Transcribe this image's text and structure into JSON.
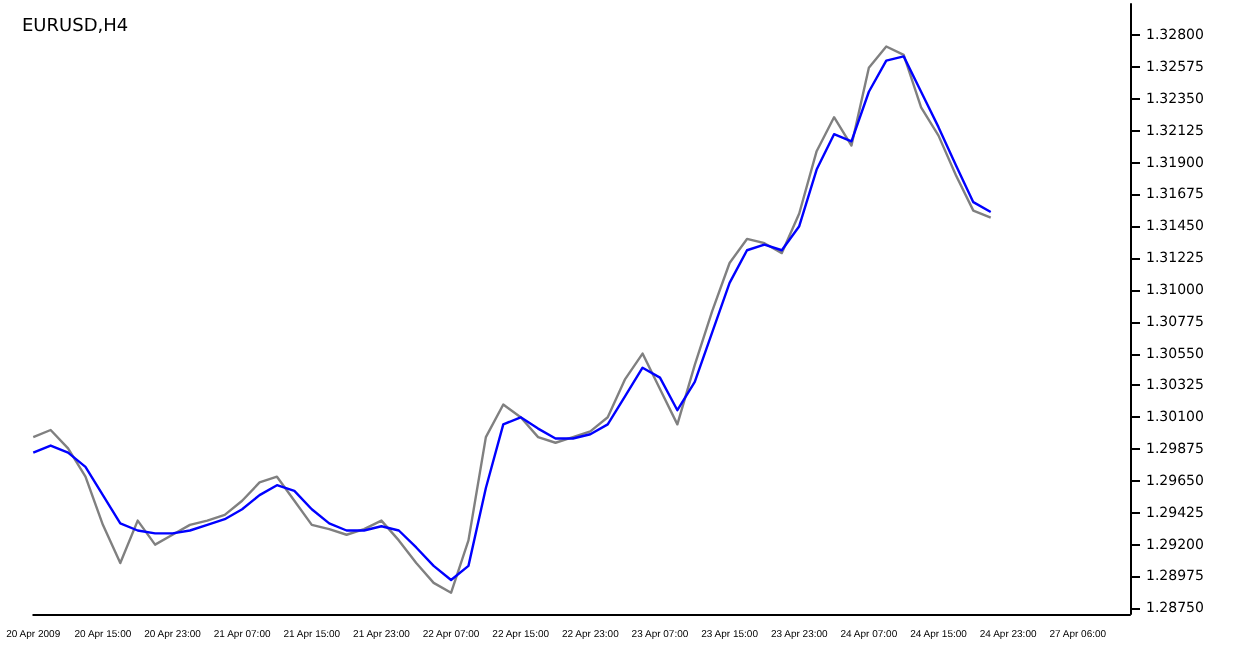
{
  "chart_data": {
    "type": "line",
    "title": "EURUSD,H4",
    "categories": [
      "20 Apr 2009",
      null,
      null,
      null,
      "20 Apr 15:00",
      null,
      null,
      null,
      "20 Apr 23:00",
      null,
      null,
      null,
      "21 Apr 07:00",
      null,
      null,
      null,
      "21 Apr 15:00",
      null,
      null,
      null,
      "21 Apr 23:00",
      null,
      null,
      null,
      "22 Apr 07:00",
      null,
      null,
      null,
      "22 Apr 15:00",
      null,
      null,
      null,
      "22 Apr 23:00",
      null,
      null,
      null,
      "23 Apr 07:00",
      null,
      null,
      null,
      "23 Apr 15:00",
      null,
      null,
      null,
      "23 Apr 23:00",
      null,
      null,
      null,
      "24 Apr 07:00",
      null,
      null,
      null,
      "24 Apr 15:00",
      null,
      null,
      null,
      "24 Apr 23:00",
      null,
      null,
      null,
      "27 Apr 06:00",
      null,
      null,
      null
    ],
    "series": [
      {
        "color": "#808080",
        "values": [
          1.2996,
          1.3001,
          1.2988,
          1.2968,
          1.2934,
          1.2907,
          1.2937,
          1.292,
          1.2927,
          1.2934,
          1.2937,
          1.2941,
          1.2951,
          1.2964,
          1.2968,
          1.2951,
          1.2934,
          1.2931,
          1.2927,
          1.2931,
          1.2937,
          1.2923,
          1.2907,
          1.2893,
          1.2886,
          1.2923,
          1.2996,
          1.3019,
          1.301,
          1.2996,
          1.2992,
          1.2996,
          1.3,
          1.301,
          1.3037,
          1.3055,
          1.303,
          1.3005,
          1.3047,
          1.3085,
          1.3119,
          1.3136,
          1.3133,
          1.3126,
          1.3154,
          1.3198,
          1.3222,
          1.3202,
          1.3257,
          1.3272,
          1.3266,
          1.3229,
          1.3209,
          1.3181,
          1.3156,
          1.3151,
          null,
          null,
          null,
          null,
          null,
          null,
          null,
          null
        ]
      },
      {
        "color": "#0000ff",
        "values": [
          1.2985,
          1.299,
          1.2985,
          1.2975,
          1.2955,
          1.2935,
          1.293,
          1.2928,
          1.2928,
          1.293,
          1.2934,
          1.2938,
          1.2945,
          1.2955,
          1.2962,
          1.2958,
          1.2945,
          1.2935,
          1.293,
          1.293,
          1.2933,
          1.293,
          1.2918,
          1.2905,
          1.2895,
          1.2905,
          1.296,
          1.3005,
          1.301,
          1.3002,
          1.2995,
          1.2995,
          1.2998,
          1.3005,
          1.3025,
          1.3045,
          1.3038,
          1.3015,
          1.3035,
          1.307,
          1.3105,
          1.3128,
          1.3132,
          1.3128,
          1.3145,
          1.3185,
          1.321,
          1.3205,
          1.324,
          1.3262,
          1.3265,
          1.324,
          1.3215,
          1.3188,
          1.3162,
          1.3155,
          null,
          null,
          null,
          null,
          null,
          null,
          null,
          null
        ]
      }
    ],
    "ylim": [
      1.2871,
      1.3302
    ],
    "yticks": [
      {
        "value": 1.2875,
        "label": "1.28750"
      },
      {
        "value": 1.28975,
        "label": "1.28975"
      },
      {
        "value": 1.292,
        "label": "1.29200"
      },
      {
        "value": 1.29425,
        "label": "1.29425"
      },
      {
        "value": 1.2965,
        "label": "1.29650"
      },
      {
        "value": 1.29875,
        "label": "1.29875"
      },
      {
        "value": 1.301,
        "label": "1.30100"
      },
      {
        "value": 1.30325,
        "label": "1.30325"
      },
      {
        "value": 1.3055,
        "label": "1.30550"
      },
      {
        "value": 1.30775,
        "label": "1.30775"
      },
      {
        "value": 1.31,
        "label": "1.31000"
      },
      {
        "value": 1.31225,
        "label": "1.31225"
      },
      {
        "value": 1.3145,
        "label": "1.31450"
      },
      {
        "value": 1.31675,
        "label": "1.31675"
      },
      {
        "value": 1.319,
        "label": "1.31900"
      },
      {
        "value": 1.32125,
        "label": "1.32125"
      },
      {
        "value": 1.3235,
        "label": "1.32350"
      },
      {
        "value": 1.32575,
        "label": "1.32575"
      },
      {
        "value": 1.328,
        "label": "1.32800"
      }
    ],
    "marker": "none",
    "line_style": "solid"
  }
}
